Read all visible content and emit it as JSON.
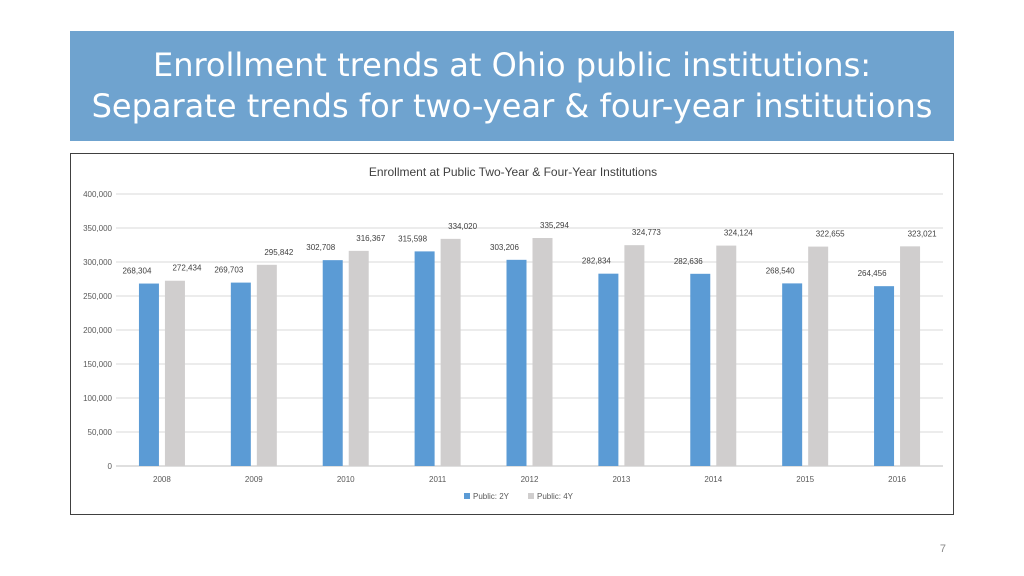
{
  "slide": {
    "title_line1": "Enrollment trends at Ohio public institutions:",
    "title_line2": "Separate trends for two-year & four-year institutions",
    "page_number": "7"
  },
  "colors": {
    "banner": "#6fa3cf",
    "series_2y": "#5b9bd5",
    "series_4y": "#d0cece"
  },
  "chart_data": {
    "type": "bar",
    "title": "Enrollment at Public Two-Year & Four-Year Institutions",
    "categories": [
      "2008",
      "2009",
      "2010",
      "2011",
      "2012",
      "2013",
      "2014",
      "2015",
      "2016"
    ],
    "series": [
      {
        "name": "Public: 2Y",
        "values": [
          268304,
          269703,
          302708,
          315598,
          303206,
          282834,
          282636,
          268540,
          264456
        ],
        "labels": [
          "268,304",
          "269,703",
          "302,708",
          "315,598",
          "303,206",
          "282,834",
          "282,636",
          "268,540",
          "264,456"
        ]
      },
      {
        "name": "Public: 4Y",
        "values": [
          272434,
          295842,
          316367,
          334020,
          335294,
          324773,
          324124,
          322655,
          323021
        ],
        "labels": [
          "272,434",
          "295,842",
          "316,367",
          "334,020",
          "335,294",
          "324,773",
          "324,124",
          "322,655",
          "323,021"
        ]
      }
    ],
    "ylim": [
      0,
      400000
    ],
    "yticks": [
      0,
      50000,
      100000,
      150000,
      200000,
      250000,
      300000,
      350000,
      400000
    ],
    "ytick_labels": [
      "0",
      "50,000",
      "100,000",
      "150,000",
      "200,000",
      "250,000",
      "300,000",
      "350,000",
      "400,000"
    ],
    "xlabel": "",
    "ylabel": "",
    "grid": true,
    "legend_position": "bottom"
  }
}
